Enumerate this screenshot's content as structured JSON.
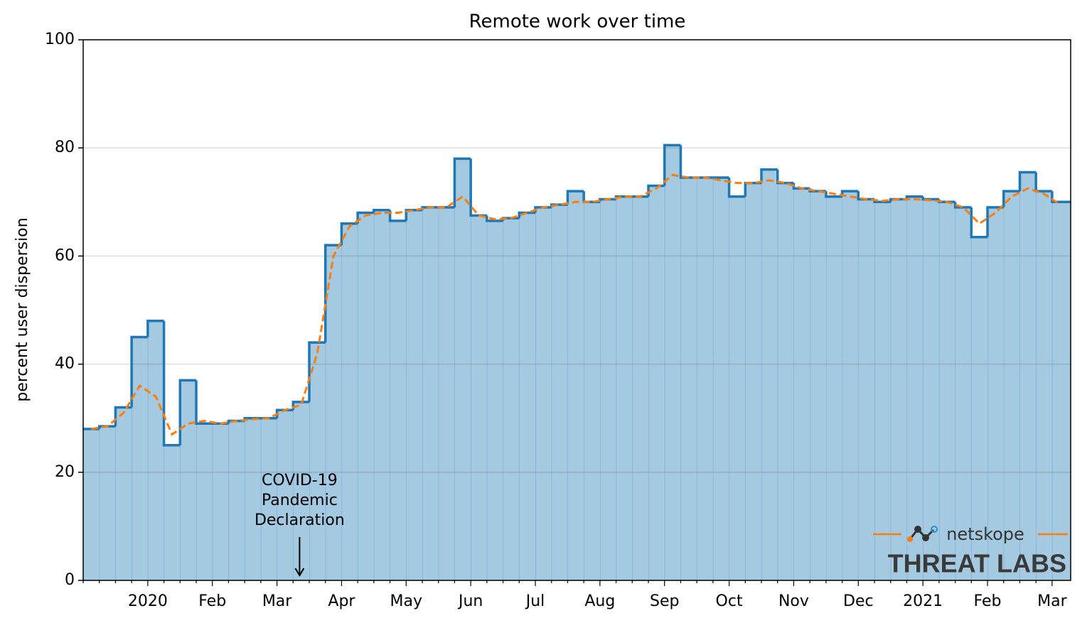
{
  "chart_data": {
    "type": "step",
    "title": "Remote work over time",
    "y_label": "percent user dispersion",
    "categories": [
      null,
      null,
      null,
      null,
      "2020",
      null,
      null,
      null,
      "Feb",
      null,
      null,
      null,
      "Mar",
      null,
      null,
      null,
      "Apr",
      null,
      null,
      null,
      "May",
      null,
      null,
      null,
      "Jun",
      null,
      null,
      null,
      "Jul",
      null,
      null,
      null,
      "Aug",
      null,
      null,
      null,
      "Sep",
      null,
      null,
      null,
      "Oct",
      null,
      null,
      null,
      "Nov",
      null,
      null,
      null,
      "Dec",
      null,
      null,
      null,
      "2021",
      null,
      null,
      null,
      "Feb",
      null,
      null,
      null,
      "Mar"
    ],
    "series": [
      {
        "color": "#1f77b4",
        "fill": true,
        "dashed": false,
        "values": [
          28,
          28.5,
          32,
          45,
          48,
          25,
          37,
          29,
          29,
          29.5,
          30,
          30,
          31.5,
          33,
          44,
          62,
          66,
          68,
          68.5,
          66.5,
          68.5,
          69,
          69,
          78,
          67.5,
          66.5,
          67,
          68,
          69,
          69.5,
          72,
          70,
          70.5,
          71,
          71,
          73,
          80.5,
          74.5,
          74.5,
          74.5,
          71,
          73.5,
          76,
          73.5,
          72.5,
          72,
          71,
          72,
          70.5,
          70,
          70.5,
          71,
          70.5,
          70,
          69,
          63.5,
          69,
          72,
          75.5,
          72,
          70
        ]
      },
      {
        "color": "#ff7f0e",
        "fill": false,
        "dashed": true,
        "values": [
          28,
          28.5,
          31,
          36,
          34,
          27,
          29,
          29.5,
          29,
          29.5,
          29.8,
          30,
          31.5,
          32.5,
          42,
          60,
          65.5,
          67.5,
          68,
          68,
          68.5,
          69,
          69,
          71,
          67.5,
          66.8,
          67,
          68,
          69,
          69.5,
          70,
          70,
          70.5,
          71,
          71,
          72.5,
          75,
          74.5,
          74.5,
          74,
          73.5,
          73.5,
          74,
          73.5,
          72.5,
          72,
          71.5,
          71,
          70.5,
          70.2,
          70.5,
          70.5,
          70.3,
          70,
          69,
          66,
          68,
          71,
          72.5,
          71.5,
          69.5
        ]
      }
    ],
    "ylim": [
      0,
      100
    ],
    "yticks": [
      0,
      20,
      40,
      60,
      80,
      100
    ],
    "grid": true,
    "annotation": {
      "lines": [
        "COVID-19",
        "Pandemic",
        "Declaration"
      ]
    }
  },
  "logo": {
    "brand": "netskope",
    "tagline": "THREAT LABS"
  }
}
